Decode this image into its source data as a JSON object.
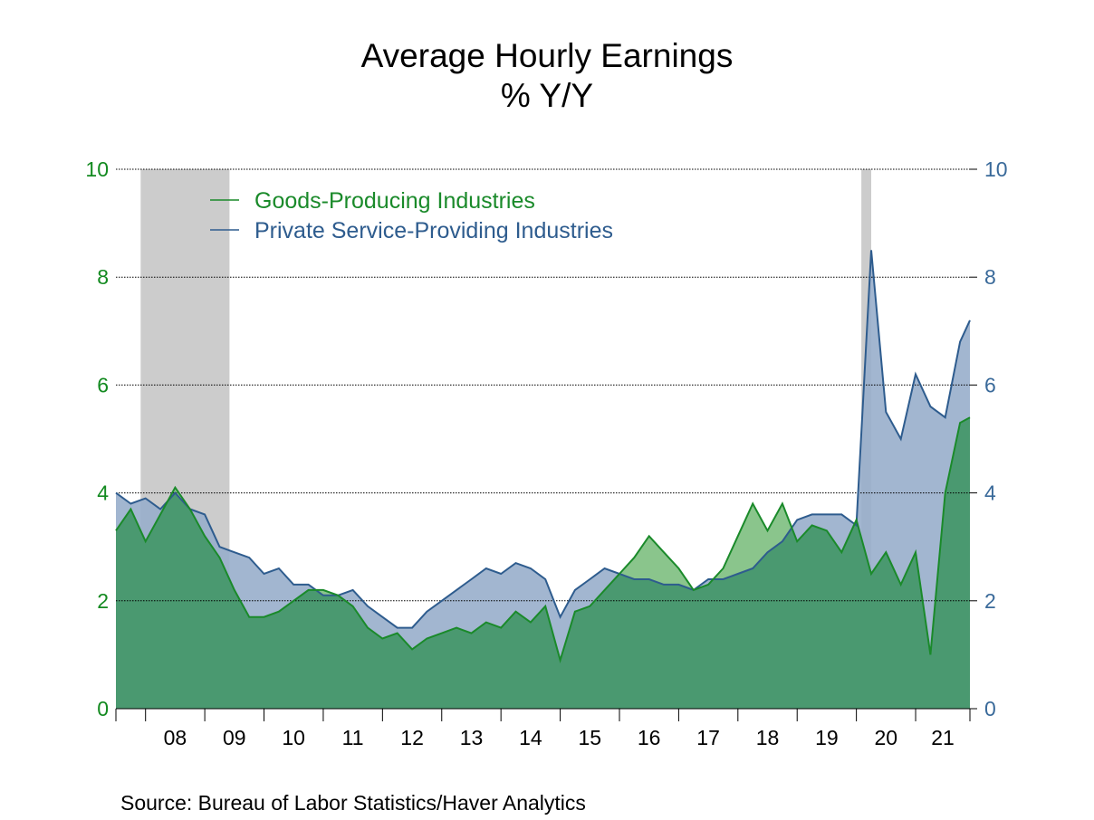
{
  "chart_data": {
    "type": "area",
    "title": "Average Hourly Earnings",
    "subtitle": "% Y/Y",
    "source": "Source:  Bureau of Labor Statistics/Haver Analytics",
    "x_range": [
      "2007-07",
      "2021-12"
    ],
    "x_ticks": [
      "08",
      "09",
      "10",
      "11",
      "12",
      "13",
      "14",
      "15",
      "16",
      "17",
      "18",
      "19",
      "20",
      "21"
    ],
    "ylim": [
      0,
      10
    ],
    "y_ticks": [
      0,
      2,
      4,
      6,
      8,
      10
    ],
    "grid": "horizontal dotted",
    "legend_position": "top-left",
    "recessions": [
      [
        "2007-12",
        "2009-06"
      ],
      [
        "2020-02",
        "2020-04"
      ]
    ],
    "colors": {
      "goods_line": "#1a8a2a",
      "goods_fill": "#7dbf7f",
      "services_line": "#2e5c8e",
      "services_fill": "#98aecb",
      "overlap_fill": "#4a9970",
      "recession": "#cccccc",
      "left_axis": "#138a20",
      "right_axis": "#3a6a9a"
    },
    "series": [
      {
        "name": "Goods-Producing Industries",
        "x": [
          "2007-07",
          "2007-10",
          "2008-01",
          "2008-04",
          "2008-07",
          "2008-10",
          "2009-01",
          "2009-04",
          "2009-07",
          "2009-10",
          "2010-01",
          "2010-04",
          "2010-07",
          "2010-10",
          "2011-01",
          "2011-04",
          "2011-07",
          "2011-10",
          "2012-01",
          "2012-04",
          "2012-07",
          "2012-10",
          "2013-01",
          "2013-04",
          "2013-07",
          "2013-10",
          "2014-01",
          "2014-04",
          "2014-07",
          "2014-10",
          "2015-01",
          "2015-04",
          "2015-07",
          "2015-10",
          "2016-01",
          "2016-04",
          "2016-07",
          "2016-10",
          "2017-01",
          "2017-04",
          "2017-07",
          "2017-10",
          "2018-01",
          "2018-04",
          "2018-07",
          "2018-10",
          "2019-01",
          "2019-04",
          "2019-07",
          "2019-10",
          "2020-01",
          "2020-04",
          "2020-07",
          "2020-10",
          "2021-01",
          "2021-04",
          "2021-07",
          "2021-10",
          "2021-12"
        ],
        "values": [
          3.3,
          3.7,
          3.1,
          3.6,
          4.1,
          3.7,
          3.2,
          2.8,
          2.2,
          1.7,
          1.7,
          1.8,
          2.0,
          2.2,
          2.2,
          2.1,
          1.9,
          1.5,
          1.3,
          1.4,
          1.1,
          1.3,
          1.4,
          1.5,
          1.4,
          1.6,
          1.5,
          1.8,
          1.6,
          1.9,
          0.9,
          1.8,
          1.9,
          2.2,
          2.5,
          2.8,
          3.2,
          2.9,
          2.6,
          2.2,
          2.3,
          2.6,
          3.2,
          3.8,
          3.3,
          3.8,
          3.1,
          3.4,
          3.3,
          2.9,
          3.5,
          2.5,
          2.9,
          2.3,
          2.9,
          1.0,
          4.0,
          5.3,
          5.4
        ]
      },
      {
        "name": "Private Service-Providing Industries",
        "x": [
          "2007-07",
          "2007-10",
          "2008-01",
          "2008-04",
          "2008-07",
          "2008-10",
          "2009-01",
          "2009-04",
          "2009-07",
          "2009-10",
          "2010-01",
          "2010-04",
          "2010-07",
          "2010-10",
          "2011-01",
          "2011-04",
          "2011-07",
          "2011-10",
          "2012-01",
          "2012-04",
          "2012-07",
          "2012-10",
          "2013-01",
          "2013-04",
          "2013-07",
          "2013-10",
          "2014-01",
          "2014-04",
          "2014-07",
          "2014-10",
          "2015-01",
          "2015-04",
          "2015-07",
          "2015-10",
          "2016-01",
          "2016-04",
          "2016-07",
          "2016-10",
          "2017-01",
          "2017-04",
          "2017-07",
          "2017-10",
          "2018-01",
          "2018-04",
          "2018-07",
          "2018-10",
          "2019-01",
          "2019-04",
          "2019-07",
          "2019-10",
          "2020-01",
          "2020-04",
          "2020-07",
          "2020-10",
          "2021-01",
          "2021-04",
          "2021-07",
          "2021-10",
          "2021-12"
        ],
        "values": [
          4.0,
          3.8,
          3.9,
          3.7,
          4.0,
          3.7,
          3.6,
          3.0,
          2.9,
          2.8,
          2.5,
          2.6,
          2.3,
          2.3,
          2.1,
          2.1,
          2.2,
          1.9,
          1.7,
          1.5,
          1.5,
          1.8,
          2.0,
          2.2,
          2.4,
          2.6,
          2.5,
          2.7,
          2.6,
          2.4,
          1.7,
          2.2,
          2.4,
          2.6,
          2.5,
          2.4,
          2.4,
          2.3,
          2.3,
          2.2,
          2.4,
          2.4,
          2.5,
          2.6,
          2.9,
          3.1,
          3.5,
          3.6,
          3.6,
          3.6,
          3.4,
          8.5,
          5.5,
          5.0,
          6.2,
          5.6,
          5.4,
          6.8,
          7.2
        ]
      }
    ]
  }
}
